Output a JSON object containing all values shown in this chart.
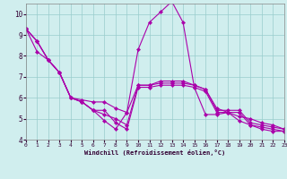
{
  "xlabel": "Windchill (Refroidissement éolien,°C)",
  "bg_color": "#d0eeee",
  "line_color": "#aa00aa",
  "grid_color": "#99cccc",
  "xlim": [
    0,
    23
  ],
  "ylim": [
    4,
    10.5
  ],
  "yticks": [
    4,
    5,
    6,
    7,
    8,
    9,
    10
  ],
  "xticks": [
    0,
    1,
    2,
    3,
    4,
    5,
    6,
    7,
    8,
    9,
    10,
    11,
    12,
    13,
    14,
    15,
    16,
    17,
    18,
    19,
    20,
    21,
    22,
    23
  ],
  "series": [
    [
      9.3,
      8.7,
      7.8,
      7.2,
      6.0,
      5.8,
      5.4,
      5.4,
      4.8,
      4.5,
      6.5,
      6.5,
      6.6,
      6.6,
      6.6,
      6.5,
      6.3,
      5.3,
      5.3,
      5.3,
      4.7,
      4.6,
      4.5,
      4.4
    ],
    [
      9.3,
      8.7,
      7.8,
      7.2,
      6.0,
      5.8,
      5.4,
      4.9,
      4.5,
      5.3,
      8.3,
      9.6,
      10.1,
      10.6,
      9.6,
      6.5,
      5.2,
      5.2,
      5.3,
      4.9,
      4.7,
      4.5,
      4.4,
      4.4
    ],
    [
      9.3,
      8.2,
      7.8,
      7.2,
      6.0,
      5.9,
      5.8,
      5.8,
      5.5,
      5.3,
      6.6,
      6.6,
      6.8,
      6.8,
      6.8,
      6.6,
      6.4,
      5.5,
      5.3,
      5.1,
      5.0,
      4.8,
      4.7,
      4.5
    ],
    [
      9.3,
      8.7,
      7.8,
      7.2,
      6.0,
      5.8,
      5.4,
      5.2,
      5.0,
      4.7,
      6.6,
      6.6,
      6.7,
      6.7,
      6.7,
      6.6,
      6.4,
      5.4,
      5.4,
      5.4,
      4.8,
      4.7,
      4.6,
      4.5
    ]
  ]
}
